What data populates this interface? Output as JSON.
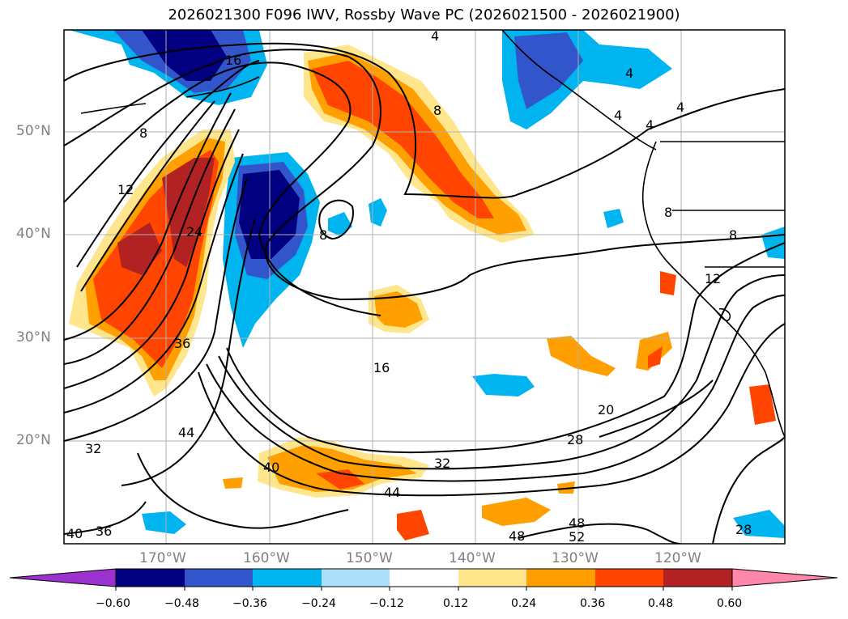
{
  "title": "2026021300 F096 IWV, Rossby Wave PC (2026021500 - 2026021900)",
  "lat_labels": [
    "50°N",
    "40°N",
    "30°N",
    "20°N"
  ],
  "lon_labels": [
    "170°W",
    "160°W",
    "150°W",
    "140°W",
    "130°W",
    "120°W"
  ],
  "colorbar": {
    "ticks": [
      "−0.60",
      "−0.48",
      "−0.36",
      "−0.24",
      "−0.12",
      "0.12",
      "0.24",
      "0.36",
      "0.48",
      "0.60"
    ],
    "colors": [
      "#9b32cf",
      "#000080",
      "#3355cc",
      "#00b4f0",
      "#ace0fa",
      "#ffffff",
      "#ffe68c",
      "#ffa000",
      "#ff4500",
      "#b22222",
      "#ff88aa"
    ]
  },
  "contour_labels": [
    "4",
    "4",
    "4",
    "4",
    "4",
    "8",
    "8",
    "8",
    "8",
    "8",
    "12",
    "12",
    "16",
    "16",
    "20",
    "24",
    "28",
    "28",
    "32",
    "32",
    "36",
    "36",
    "40",
    "40",
    "44",
    "44",
    "48",
    "48",
    "52"
  ]
}
